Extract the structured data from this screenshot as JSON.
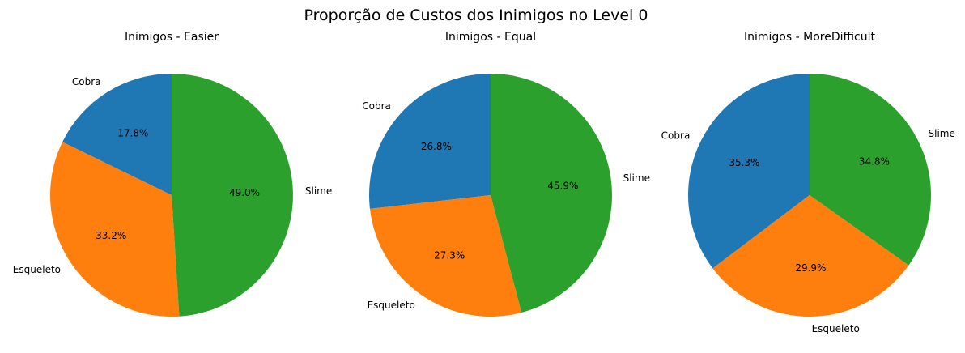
{
  "figure": {
    "title": "Proporção de Custos dos Inimigos no Level 0"
  },
  "colors": {
    "Cobra": "#1f77b4",
    "Esqueleto": "#ff7f0e",
    "Slime": "#2ca02c"
  },
  "chart_data": [
    {
      "type": "pie",
      "title": "Inimigos - Easier",
      "labels": [
        "Cobra",
        "Esqueleto",
        "Slime"
      ],
      "values": [
        17.8,
        33.2,
        49.0
      ],
      "autopct": [
        "17.8%",
        "33.2%",
        "49.0%"
      ],
      "start_angle": 90,
      "direction": "counterclockwise"
    },
    {
      "type": "pie",
      "title": "Inimigos - Equal",
      "labels": [
        "Cobra",
        "Esqueleto",
        "Slime"
      ],
      "values": [
        26.8,
        27.3,
        45.9
      ],
      "autopct": [
        "26.8%",
        "27.3%",
        "45.9%"
      ],
      "start_angle": 90,
      "direction": "counterclockwise"
    },
    {
      "type": "pie",
      "title": "Inimigos - MoreDifficult",
      "labels": [
        "Cobra",
        "Esqueleto",
        "Slime"
      ],
      "values": [
        35.3,
        29.9,
        34.8
      ],
      "autopct": [
        "35.3%",
        "29.9%",
        "34.8%"
      ],
      "start_angle": 90,
      "direction": "counterclockwise"
    }
  ]
}
